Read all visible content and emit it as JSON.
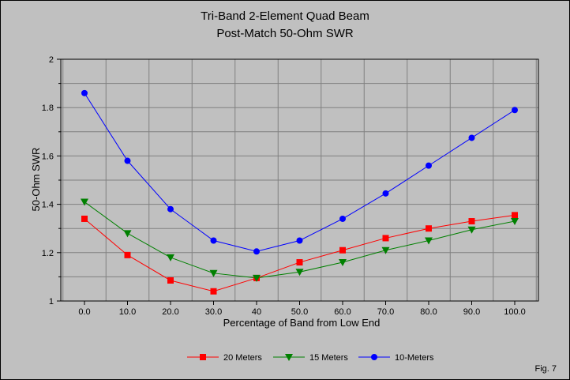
{
  "chart_data": {
    "type": "line",
    "title": "Tri-Band 2-Element Quad Beam",
    "subtitle": "Post-Match 50-Ohm SWR",
    "xlabel": "Percentage of Band from Low End",
    "ylabel": "50-Ohm SWR",
    "categories": [
      "0.0",
      "10.0",
      "20.0",
      "30.0",
      "40",
      "50.0",
      "60.0",
      "70.0",
      "80.0",
      "90.0",
      "100.0"
    ],
    "yticks": [
      "1",
      "1.2",
      "1.4",
      "1.6",
      "1.8",
      "2"
    ],
    "ylim": [
      1,
      2
    ],
    "grid": true,
    "legend": "bottom",
    "series": [
      {
        "name": "20 Meters",
        "color": "#ff0000",
        "marker": "square",
        "values": [
          1.34,
          1.19,
          1.085,
          1.04,
          1.095,
          1.16,
          1.21,
          1.26,
          1.3,
          1.33,
          1.355
        ]
      },
      {
        "name": "15 Meters",
        "color": "#008000",
        "marker": "triangle-down",
        "values": [
          1.41,
          1.28,
          1.18,
          1.115,
          1.095,
          1.12,
          1.16,
          1.21,
          1.25,
          1.295,
          1.33
        ]
      },
      {
        "name": "10-Meters",
        "color": "#0000ff",
        "marker": "circle",
        "values": [
          1.86,
          1.58,
          1.38,
          1.25,
          1.205,
          1.25,
          1.34,
          1.445,
          1.56,
          1.675,
          1.79
        ]
      }
    ],
    "annotation": "Fig. 7"
  }
}
